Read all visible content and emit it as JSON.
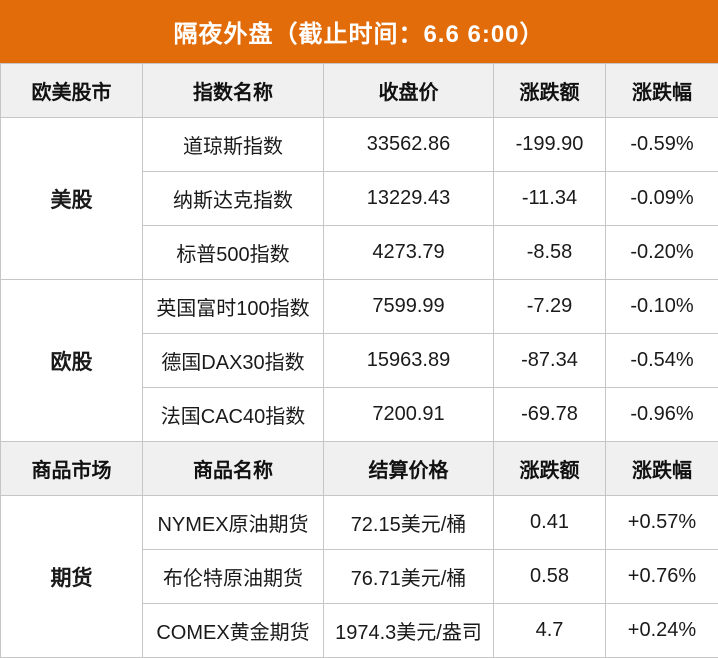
{
  "title": "隔夜外盘（截止时间：6.6 6:00）",
  "colors": {
    "accent_orange": "#E26B0A",
    "header_row_bg": "#F0F0F0",
    "border_gray": "#C6C6C6",
    "down_green": "#00B050",
    "up_red": "#FF0000"
  },
  "chart_data": {
    "type": "table",
    "title": "隔夜外盘（截止时间：6.6 6:00）",
    "sections": [
      {
        "headers": [
          "欧美股市",
          "指数名称",
          "收盘价",
          "涨跌额",
          "涨跌幅"
        ],
        "groups": [
          {
            "category": "美股",
            "rows": [
              {
                "name": "道琼斯指数",
                "price": "33562.86",
                "change": "-199.90",
                "pct": "-0.59%",
                "direction": "down"
              },
              {
                "name": "纳斯达克指数",
                "price": "13229.43",
                "change": "-11.34",
                "pct": "-0.09%",
                "direction": "down"
              },
              {
                "name": "标普500指数",
                "price": "4273.79",
                "change": "-8.58",
                "pct": "-0.20%",
                "direction": "down"
              }
            ]
          },
          {
            "category": "欧股",
            "rows": [
              {
                "name": "英国富时100指数",
                "price": "7599.99",
                "change": "-7.29",
                "pct": "-0.10%",
                "direction": "down"
              },
              {
                "name": "德国DAX30指数",
                "price": "15963.89",
                "change": "-87.34",
                "pct": "-0.54%",
                "direction": "down"
              },
              {
                "name": "法国CAC40指数",
                "price": "7200.91",
                "change": "-69.78",
                "pct": "-0.96%",
                "direction": "down"
              }
            ]
          }
        ]
      },
      {
        "headers": [
          "商品市场",
          "商品名称",
          "结算价格",
          "涨跌额",
          "涨跌幅"
        ],
        "groups": [
          {
            "category": "期货",
            "rows": [
              {
                "name": "NYMEX原油期货",
                "price": "72.15美元/桶",
                "change": "0.41",
                "pct": "+0.57%",
                "direction": "up"
              },
              {
                "name": "布伦特原油期货",
                "price": "76.71美元/桶",
                "change": "0.58",
                "pct": "+0.76%",
                "direction": "up"
              },
              {
                "name": "COMEX黄金期货",
                "price": "1974.3美元/盎司",
                "change": "4.7",
                "pct": "+0.24%",
                "direction": "up"
              }
            ]
          }
        ]
      }
    ]
  }
}
